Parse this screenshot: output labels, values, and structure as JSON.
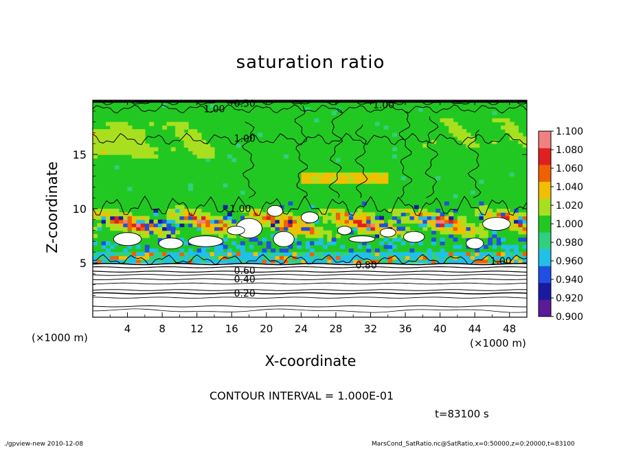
{
  "chart_data": {
    "type": "heatmap",
    "title": "saturation ratio",
    "xlabel": "X-coordinate",
    "ylabel": "Z-coordinate",
    "x_unit_left": "(×1000 m)",
    "x_unit_right": "(×1000 m)",
    "xlim": [
      0,
      50
    ],
    "ylim": [
      0,
      20
    ],
    "x_ticks": [
      4,
      8,
      12,
      16,
      20,
      24,
      28,
      32,
      36,
      40,
      44,
      48
    ],
    "y_ticks": [
      5,
      10,
      15
    ],
    "colorbar": {
      "levels": [
        0.9,
        0.92,
        0.94,
        0.96,
        0.98,
        1.0,
        1.02,
        1.04,
        1.06,
        1.08,
        1.1
      ],
      "labels": [
        "0.900",
        "0.920",
        "0.940",
        "0.960",
        "0.980",
        "1.000",
        "1.020",
        "1.040",
        "1.060",
        "1.080",
        "1.100"
      ],
      "colors": [
        "#5a1a9a",
        "#1a1aa0",
        "#2050e0",
        "#20c0e8",
        "#30d080",
        "#22c822",
        "#a8e020",
        "#f0c000",
        "#f06000",
        "#e02020",
        "#f08080"
      ]
    },
    "contour_labels": [
      {
        "text": "0.50",
        "x": 17.5,
        "z": 19.7
      },
      {
        "text": "1.00",
        "x": 14.0,
        "z": 19.2
      },
      {
        "text": "1.00",
        "x": 17.5,
        "z": 16.5
      },
      {
        "text": "1.00",
        "x": 33.5,
        "z": 19.6
      },
      {
        "text": "1.00",
        "x": 17.0,
        "z": 10.0
      },
      {
        "text": "1.00",
        "x": 47.0,
        "z": 5.2
      },
      {
        "text": "0.80",
        "x": 31.5,
        "z": 4.8
      },
      {
        "text": "0.60",
        "x": 17.5,
        "z": 4.3
      },
      {
        "text": "0.40",
        "x": 17.5,
        "z": 3.5
      },
      {
        "text": "0.20",
        "x": 17.5,
        "z": 2.2
      }
    ],
    "contour_interval": "CONTOUR INTERVAL = 1.000E-01",
    "time": "t=83100 s"
  },
  "footer": {
    "left": "./gpview-new  2010-12-08",
    "right": "MarsCond_SatRatio.nc@SatRatio,x=0:50000,z=0:20000,t=83100"
  }
}
